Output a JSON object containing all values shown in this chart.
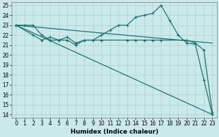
{
  "xlabel": "Humidex (Indice chaleur)",
  "xlim_min": -0.5,
  "xlim_max": 23.5,
  "ylim_min": 13.7,
  "ylim_max": 25.3,
  "yticks": [
    14,
    15,
    16,
    17,
    18,
    19,
    20,
    21,
    22,
    23,
    24,
    25
  ],
  "xticks": [
    0,
    1,
    2,
    3,
    4,
    5,
    6,
    7,
    8,
    9,
    10,
    11,
    12,
    13,
    14,
    15,
    16,
    17,
    18,
    19,
    20,
    21,
    22,
    23
  ],
  "background_color": "#cce9e9",
  "grid_color": "#aad0d0",
  "line_color": "#1a7070",
  "line1_x": [
    0,
    1,
    2,
    3,
    4,
    5,
    6,
    7,
    8,
    9,
    10,
    11,
    12,
    13,
    14,
    15,
    16,
    17,
    18,
    19,
    20,
    21,
    22,
    23
  ],
  "line1_y": [
    23.0,
    23.0,
    23.0,
    22.0,
    21.5,
    21.5,
    21.5,
    21.0,
    21.5,
    21.5,
    22.0,
    22.5,
    23.0,
    23.0,
    23.8,
    24.0,
    24.2,
    25.0,
    23.5,
    22.0,
    21.2,
    21.1,
    17.5,
    14.0
  ],
  "line2_x": [
    0,
    2,
    3,
    4,
    5,
    6,
    7,
    8,
    10,
    13,
    14,
    15,
    16,
    17,
    20,
    21,
    22,
    23
  ],
  "line2_y": [
    23.0,
    22.0,
    21.5,
    21.8,
    21.5,
    21.8,
    21.2,
    21.5,
    21.5,
    21.5,
    21.5,
    21.5,
    21.5,
    21.5,
    21.5,
    21.2,
    20.5,
    14.2
  ],
  "line3_x": [
    0,
    23
  ],
  "line3_y": [
    23.0,
    21.2
  ],
  "line4_x": [
    0,
    23
  ],
  "line4_y": [
    23.0,
    14.0
  ],
  "tick_fontsize": 5.5,
  "xlabel_fontsize": 6.5,
  "lw": 0.9
}
